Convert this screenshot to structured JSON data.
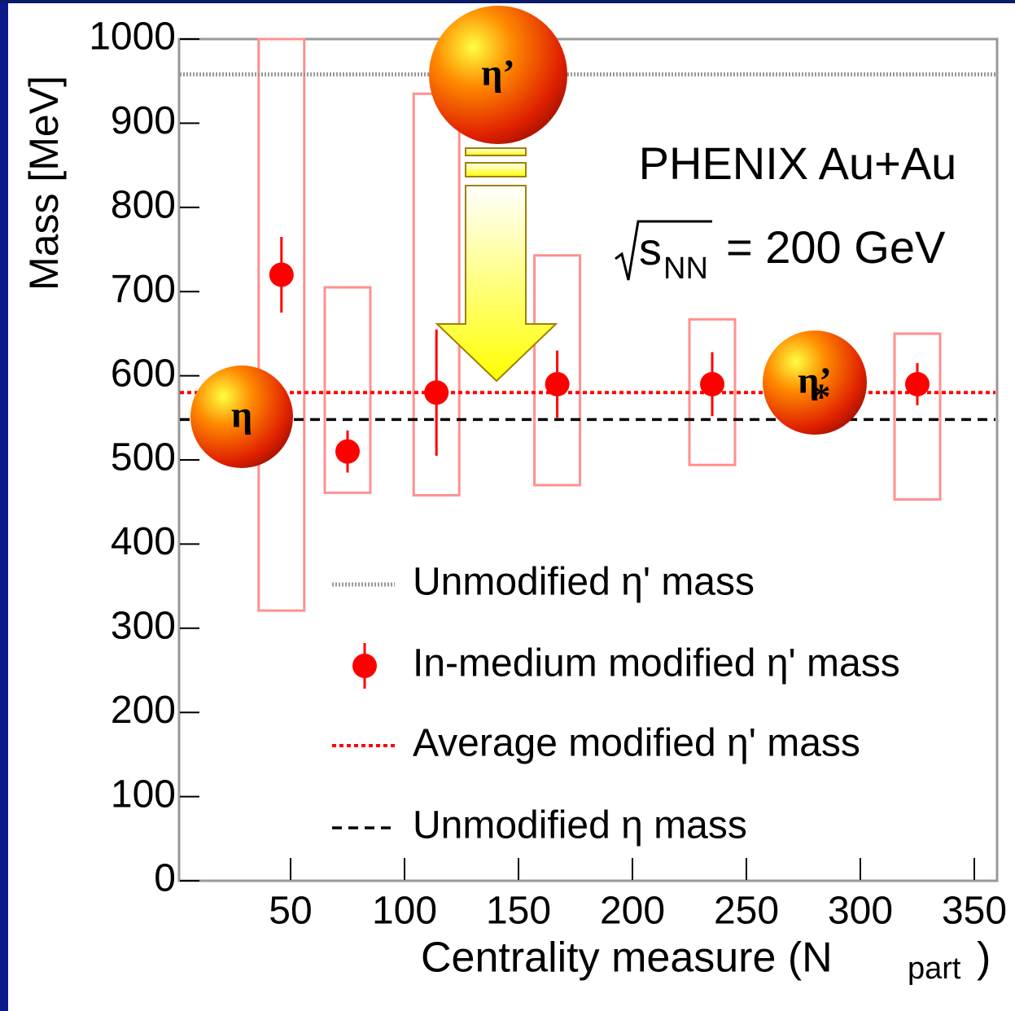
{
  "chart_data": {
    "type": "scatter",
    "title": "PHENIX Au+Au",
    "energy": {
      "symbol": "s",
      "sub": "NN",
      "rest": "= 200 GeV"
    },
    "x_label": {
      "text": "Centrality measure (N",
      "sub": "part",
      "end": ")"
    },
    "y_label": "Mass [MeV]",
    "xlim": [
      0,
      360
    ],
    "ylim": [
      0,
      1000
    ],
    "xticks": [
      50,
      100,
      150,
      200,
      250,
      300,
      350
    ],
    "yticks": [
      0,
      100,
      200,
      300,
      400,
      500,
      600,
      700,
      800,
      900,
      1000
    ],
    "x": [
      46,
      75,
      114,
      167,
      235,
      325
    ],
    "series": [
      {
        "name": "In-medium modified η' mass",
        "color": "#ff0000",
        "values": [
          720,
          510,
          580,
          590,
          590,
          590
        ],
        "errors": [
          45,
          25,
          75,
          40,
          38,
          25
        ],
        "sys_low": [
          321,
          461,
          458,
          470,
          494,
          453
        ],
        "sys_high": [
          1000,
          705,
          935,
          743,
          667,
          650
        ]
      }
    ],
    "reference_lines": [
      {
        "name": "Unmodified η' mass",
        "value": 958,
        "color": "#999999"
      },
      {
        "name": "Average modified η' mass",
        "value": 580,
        "color": "#ff0000"
      },
      {
        "name": "Unmodified η mass",
        "value": 548,
        "color": "#000000"
      }
    ],
    "particles": [
      {
        "label": "η"
      },
      {
        "label": "η’"
      },
      {
        "label": "η’",
        "sub": "*"
      }
    ]
  }
}
